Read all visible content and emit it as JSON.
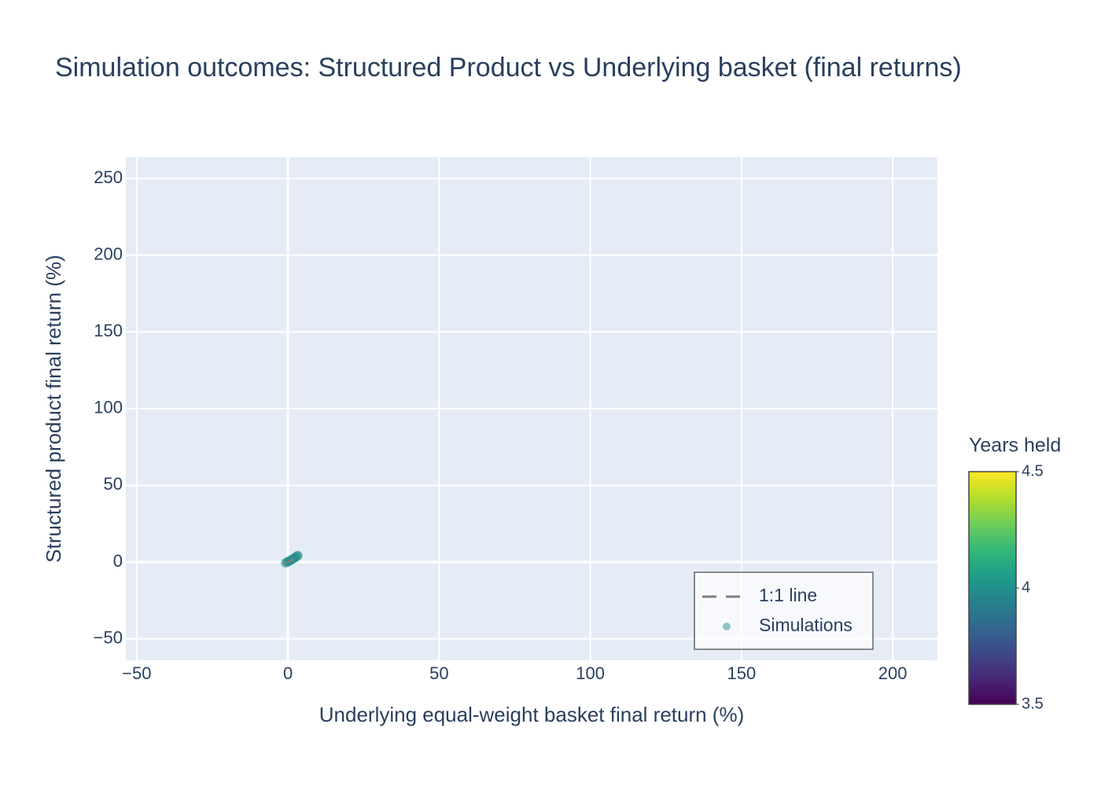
{
  "chart_data": {
    "type": "scatter",
    "title": "Simulation outcomes: Structured Product vs Underlying basket (final returns)",
    "x_label": "Underlying equal-weight basket final return (%)",
    "y_label": "Structured product final return (%)",
    "xlim": [
      -53.6,
      214.8
    ],
    "ylim": [
      -64,
      263.8
    ],
    "xticks": [
      {
        "value": -50,
        "label": "−50"
      },
      0,
      50,
      100,
      150,
      200
    ],
    "yticks": [
      {
        "value": -50,
        "label": "−50"
      },
      0,
      50,
      100,
      150,
      200,
      250
    ],
    "grid": true,
    "legend_position": "bottom-right",
    "series": [
      {
        "name": "1:1 line",
        "type": "line",
        "color": "#7f7f7f",
        "dash": true,
        "x": [
          -0.8,
          3.3
        ],
        "y": [
          -0.8,
          3.3
        ]
      },
      {
        "name": "Simulations",
        "type": "scatter",
        "color": "#21918c",
        "x": [
          -0.8,
          -0.3,
          0,
          0.4,
          0.8,
          1.2,
          1.6,
          2,
          2.4,
          2.8,
          3.1,
          3.3
        ],
        "y": [
          -0.5,
          -0.2,
          0.3,
          0.6,
          1,
          1.5,
          2,
          2.5,
          3,
          3.5,
          4,
          4.3
        ],
        "years": [
          4,
          4,
          4,
          4,
          4,
          4,
          4,
          4,
          4,
          4,
          4,
          4
        ]
      }
    ],
    "colorbar": {
      "title": "Years held",
      "lim": [
        3.5,
        4.5
      ],
      "ticks": [
        3.5,
        4,
        4.5
      ],
      "colorscale": [
        "#440154",
        "#482878",
        "#3e4989",
        "#31688e",
        "#26828e",
        "#1f9e89",
        "#35b779",
        "#6ece58",
        "#b5de2b",
        "#fde725"
      ]
    }
  }
}
